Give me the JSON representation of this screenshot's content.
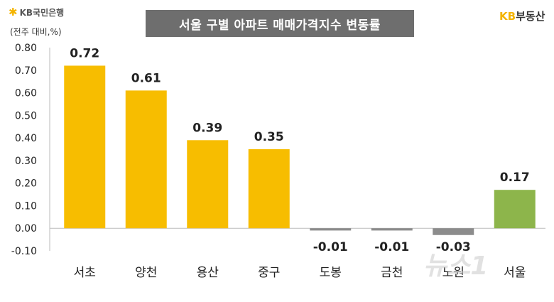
{
  "brand": {
    "kb_bank": "KB국민은행",
    "kb_land_kb": "KB",
    "kb_land_rest": "부동산"
  },
  "unit_label": "(전주 대비,%)",
  "watermark": "뉴스1",
  "chart_data": {
    "type": "bar",
    "title": "서울 구별 아파트 매매가격지수 변동률",
    "categories": [
      "서초",
      "양천",
      "용산",
      "중구",
      "도봉",
      "금천",
      "노원",
      "서울"
    ],
    "values": [
      0.72,
      0.61,
      0.39,
      0.35,
      -0.01,
      -0.01,
      -0.03,
      0.17
    ],
    "value_labels": [
      "0.72",
      "0.61",
      "0.39",
      "0.35",
      "-0.01",
      "-0.01",
      "-0.03",
      "0.17"
    ],
    "colors": [
      "#f7bd00",
      "#f7bd00",
      "#f7bd00",
      "#f7bd00",
      "#8c8c8c",
      "#8c8c8c",
      "#8c8c8c",
      "#8db54b"
    ],
    "yticks": [
      "0.80",
      "0.70",
      "0.60",
      "0.50",
      "0.40",
      "0.30",
      "0.20",
      "0.10",
      "0.00",
      "-0.10"
    ],
    "ylim": [
      -0.1,
      0.8
    ],
    "xlabel": "",
    "ylabel": "",
    "grid": false,
    "legend": "none"
  }
}
